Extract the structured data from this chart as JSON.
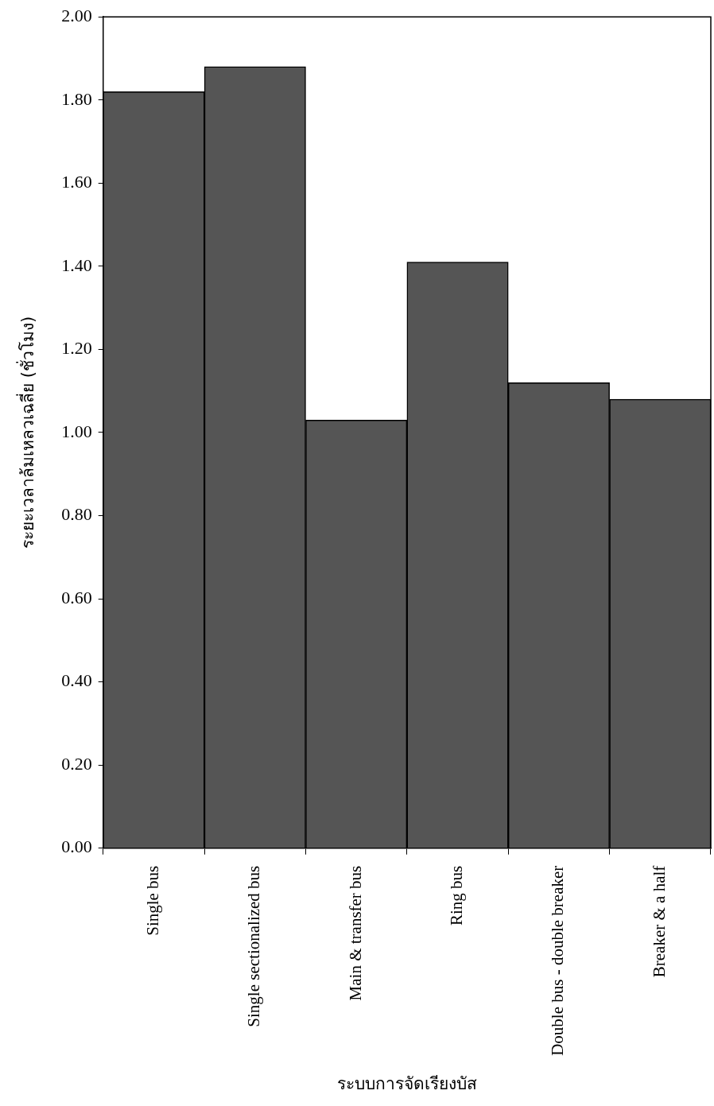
{
  "chart_data": {
    "type": "bar",
    "xlabel": "ระบบการจัดเรียงบัส",
    "ylabel": "ระยะเวลาล้มเหลวเฉลี่ย (ชั่วโมง)",
    "categories": [
      "Single bus",
      "Single sectionalized bus",
      "Main & transfer bus",
      "Ring bus",
      "Double bus - double breaker",
      "Breaker & a half"
    ],
    "values": [
      1.82,
      1.88,
      1.03,
      1.41,
      1.12,
      1.08
    ],
    "color": "#555555",
    "ylim": [
      0,
      2
    ],
    "yticks": [
      {
        "value": 0,
        "label": "0.00"
      },
      {
        "value": 0.2,
        "label": "0.20"
      },
      {
        "value": 0.4,
        "label": "0.40"
      },
      {
        "value": 0.6,
        "label": "0.60"
      },
      {
        "value": 0.8,
        "label": "0.80"
      },
      {
        "value": 1,
        "label": "1.00"
      },
      {
        "value": 1.2,
        "label": "1.20"
      },
      {
        "value": 1.4,
        "label": "1.40"
      },
      {
        "value": 1.6,
        "label": "1.60"
      },
      {
        "value": 1.8,
        "label": "1.80"
      },
      {
        "value": 2,
        "label": "2.00"
      }
    ],
    "grid": false,
    "legend": false
  }
}
